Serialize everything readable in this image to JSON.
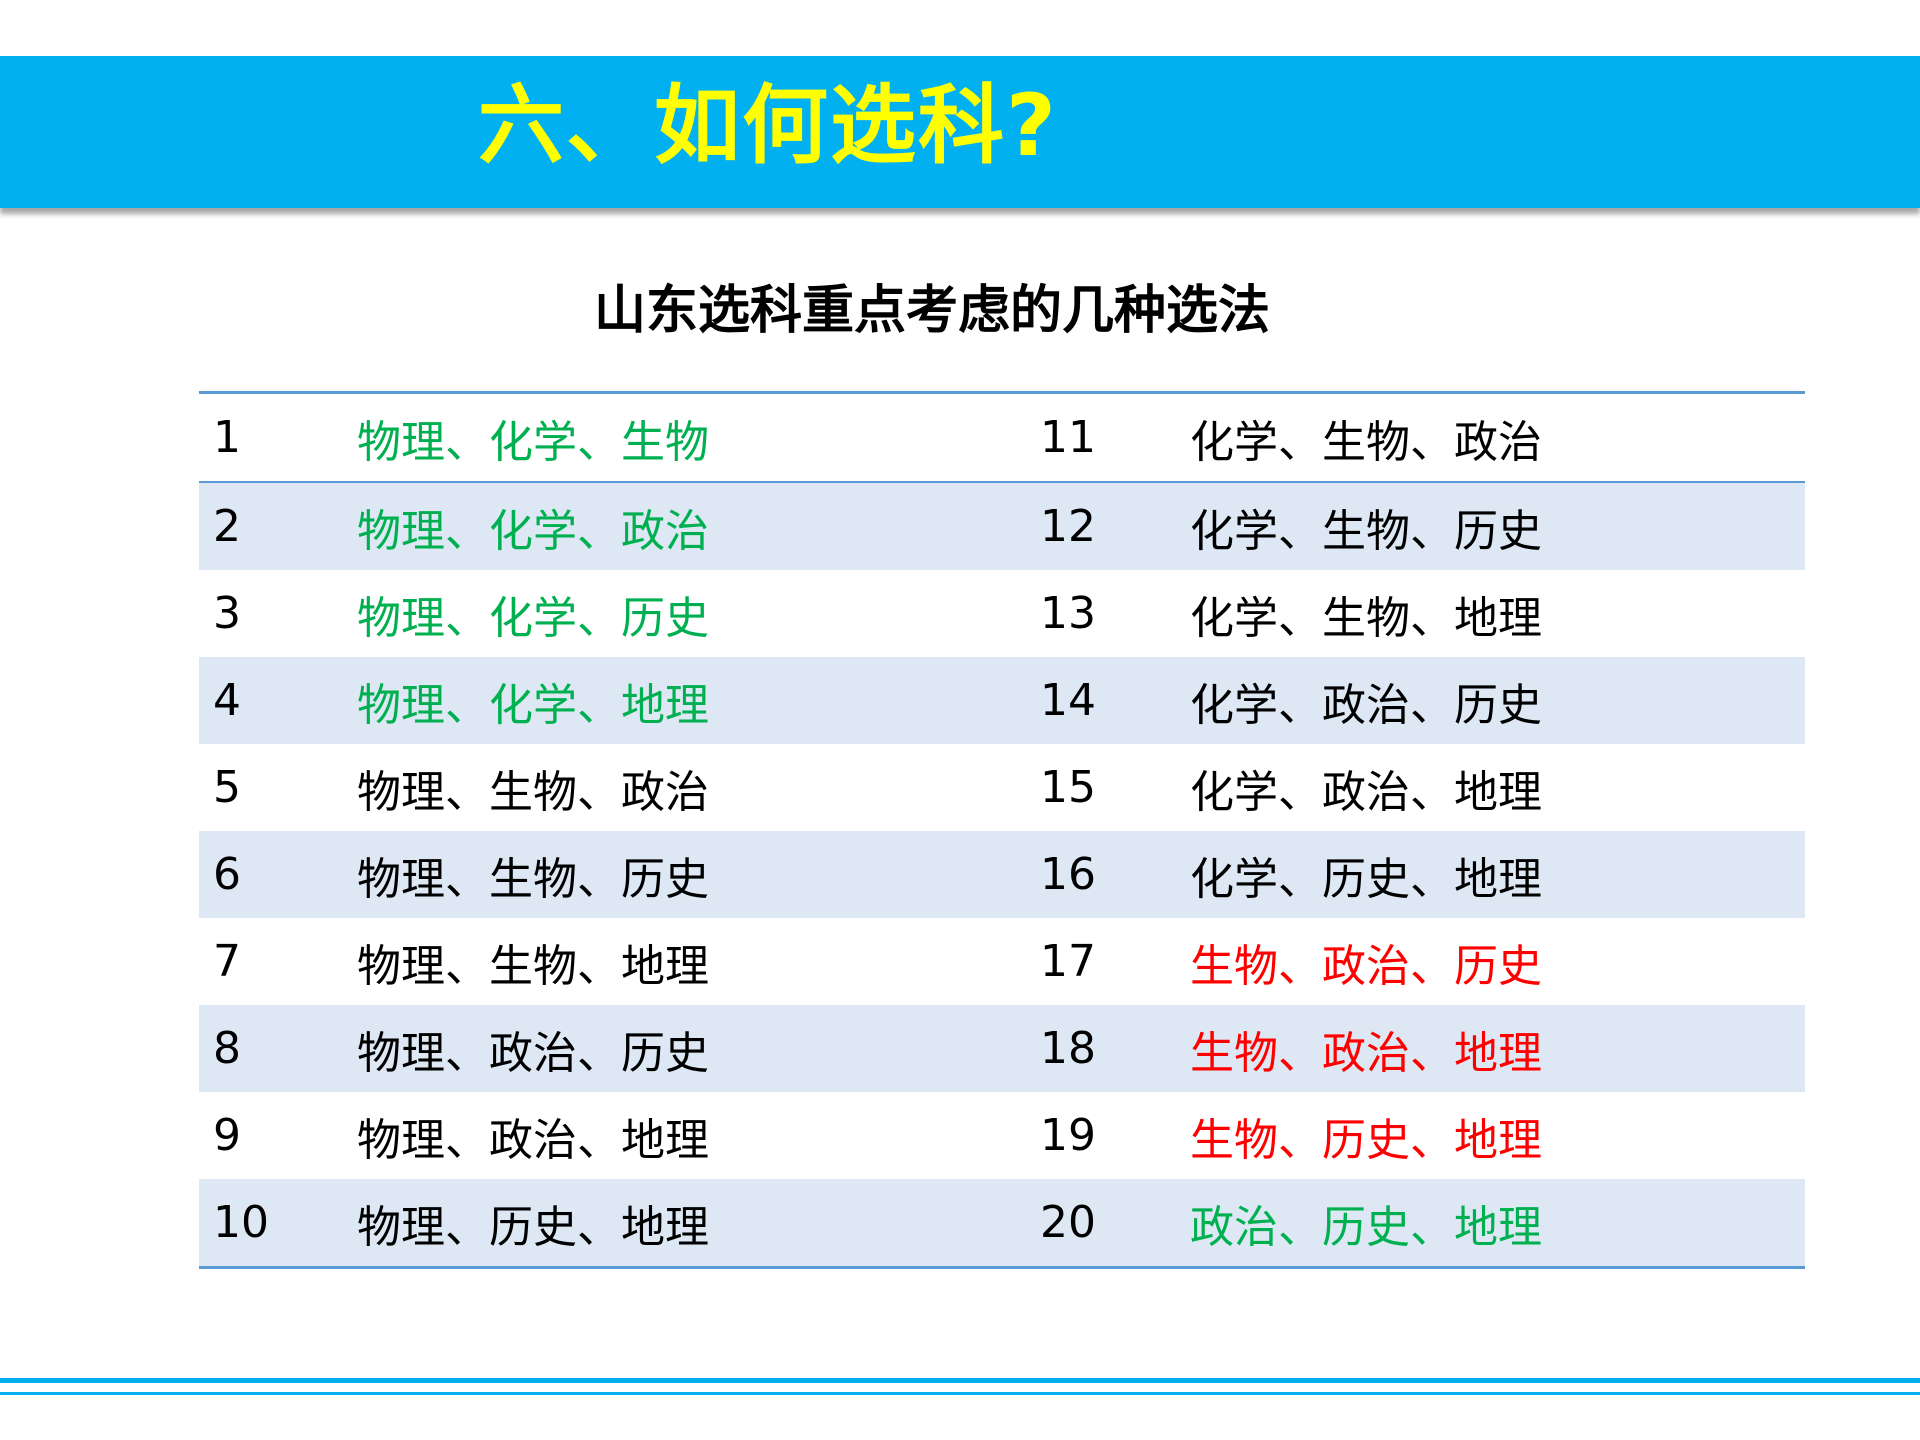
{
  "header": {
    "title": "六、如何选科?",
    "background_color": "#00b0f0",
    "title_color": "#ffff00"
  },
  "subtitle": "山东选科重点考虑的几种选法",
  "colors": {
    "green": "#00b050",
    "red": "#ff0000",
    "black": "#000000",
    "row_band": "#dde8f4",
    "rule": "#5b9bd5"
  },
  "rows": [
    {
      "left_num": "1",
      "left_subjects": "物理、化学、生物",
      "left_color": "green",
      "right_num": "11",
      "right_subjects": "化学、生物、政治",
      "right_color": "black"
    },
    {
      "left_num": "2",
      "left_subjects": "物理、化学、政治",
      "left_color": "green",
      "right_num": "12",
      "right_subjects": "化学、生物、历史",
      "right_color": "black"
    },
    {
      "left_num": "3",
      "left_subjects": "物理、化学、历史",
      "left_color": "green",
      "right_num": "13",
      "right_subjects": "化学、生物、地理",
      "right_color": "black"
    },
    {
      "left_num": "4",
      "left_subjects": "物理、化学、地理",
      "left_color": "green",
      "right_num": "14",
      "right_subjects": "化学、政治、历史",
      "right_color": "black"
    },
    {
      "left_num": "5",
      "left_subjects": "物理、生物、政治",
      "left_color": "black",
      "right_num": "15",
      "right_subjects": "化学、政治、地理",
      "right_color": "black"
    },
    {
      "left_num": "6",
      "left_subjects": "物理、生物、历史",
      "left_color": "black",
      "right_num": "16",
      "right_subjects": "化学、历史、地理",
      "right_color": "black"
    },
    {
      "left_num": "7",
      "left_subjects": "物理、生物、地理",
      "left_color": "black",
      "right_num": "17",
      "right_subjects": "生物、政治、历史",
      "right_color": "red"
    },
    {
      "left_num": "8",
      "left_subjects": "物理、政治、历史",
      "left_color": "black",
      "right_num": "18",
      "right_subjects": "生物、政治、地理",
      "right_color": "red"
    },
    {
      "left_num": "9",
      "left_subjects": "物理、政治、地理",
      "left_color": "black",
      "right_num": "19",
      "right_subjects": "生物、历史、地理",
      "right_color": "red"
    },
    {
      "left_num": "10",
      "left_subjects": "物理、历史、地理",
      "left_color": "black",
      "right_num": "20",
      "right_subjects": "政治、历史、地理",
      "right_color": "green"
    }
  ]
}
